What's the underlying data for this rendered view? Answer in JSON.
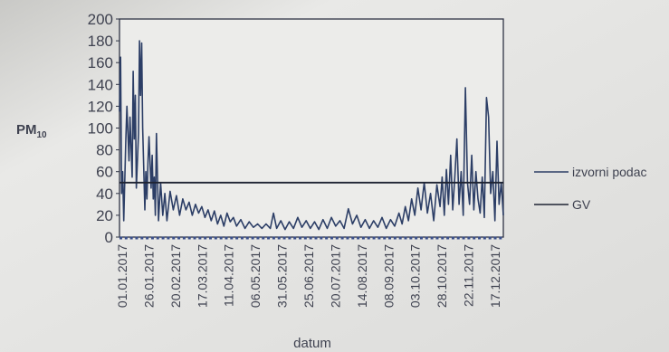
{
  "chart_data": {
    "type": "line",
    "title": "",
    "ylabel": "PM",
    "ylabel_sub": "10",
    "xlabel": "datum",
    "ylim": [
      0,
      200
    ],
    "yticks": [
      0,
      20,
      40,
      60,
      80,
      100,
      120,
      140,
      160,
      180,
      200
    ],
    "xlim": [
      "2017-01-01",
      "2017-12-31"
    ],
    "xtick_labels": [
      "01.01.2017",
      "26.01.2017",
      "20.02.2017",
      "17.03.2017",
      "11.04.2017",
      "06.05.2017",
      "31.05.2017",
      "25.06.2017",
      "20.07.2017",
      "14.08.2017",
      "08.09.2017",
      "03.10.2017",
      "28.10.2017",
      "22.11.2017",
      "17.12.2017"
    ],
    "grid": false,
    "legend_position": "right",
    "series": [
      {
        "name": "izvorni podac",
        "color": "#2c3e66",
        "points": [
          [
            "2017-01-01",
            115
          ],
          [
            "2017-01-02",
            165
          ],
          [
            "2017-01-03",
            40
          ],
          [
            "2017-01-04",
            60
          ],
          [
            "2017-01-05",
            15
          ],
          [
            "2017-01-07",
            90
          ],
          [
            "2017-01-08",
            120
          ],
          [
            "2017-01-10",
            70
          ],
          [
            "2017-01-11",
            110
          ],
          [
            "2017-01-13",
            55
          ],
          [
            "2017-01-14",
            152
          ],
          [
            "2017-01-15",
            90
          ],
          [
            "2017-01-16",
            130
          ],
          [
            "2017-01-17",
            45
          ],
          [
            "2017-01-19",
            95
          ],
          [
            "2017-01-20",
            180
          ],
          [
            "2017-01-21",
            130
          ],
          [
            "2017-01-22",
            178
          ],
          [
            "2017-01-23",
            100
          ],
          [
            "2017-01-25",
            25
          ],
          [
            "2017-01-26",
            60
          ],
          [
            "2017-01-27",
            35
          ],
          [
            "2017-01-28",
            70
          ],
          [
            "2017-01-29",
            92
          ],
          [
            "2017-01-31",
            45
          ],
          [
            "2017-02-01",
            75
          ],
          [
            "2017-02-02",
            35
          ],
          [
            "2017-02-03",
            55
          ],
          [
            "2017-02-04",
            20
          ],
          [
            "2017-02-05",
            95
          ],
          [
            "2017-02-07",
            15
          ],
          [
            "2017-02-09",
            50
          ],
          [
            "2017-02-11",
            20
          ],
          [
            "2017-02-13",
            40
          ],
          [
            "2017-02-15",
            15
          ],
          [
            "2017-02-18",
            42
          ],
          [
            "2017-02-21",
            25
          ],
          [
            "2017-02-24",
            38
          ],
          [
            "2017-02-27",
            20
          ],
          [
            "2017-03-02",
            35
          ],
          [
            "2017-03-05",
            25
          ],
          [
            "2017-03-08",
            32
          ],
          [
            "2017-03-11",
            20
          ],
          [
            "2017-03-14",
            30
          ],
          [
            "2017-03-17",
            22
          ],
          [
            "2017-03-20",
            28
          ],
          [
            "2017-03-23",
            18
          ],
          [
            "2017-03-26",
            25
          ],
          [
            "2017-03-29",
            15
          ],
          [
            "2017-04-01",
            24
          ],
          [
            "2017-04-04",
            12
          ],
          [
            "2017-04-07",
            20
          ],
          [
            "2017-04-10",
            10
          ],
          [
            "2017-04-13",
            22
          ],
          [
            "2017-04-16",
            14
          ],
          [
            "2017-04-19",
            18
          ],
          [
            "2017-04-22",
            10
          ],
          [
            "2017-04-26",
            16
          ],
          [
            "2017-04-30",
            8
          ],
          [
            "2017-05-04",
            14
          ],
          [
            "2017-05-08",
            9
          ],
          [
            "2017-05-12",
            12
          ],
          [
            "2017-05-16",
            8
          ],
          [
            "2017-05-20",
            12
          ],
          [
            "2017-05-24",
            8
          ],
          [
            "2017-05-27",
            22
          ],
          [
            "2017-05-30",
            8
          ],
          [
            "2017-06-03",
            15
          ],
          [
            "2017-06-07",
            7
          ],
          [
            "2017-06-11",
            14
          ],
          [
            "2017-06-15",
            8
          ],
          [
            "2017-06-19",
            18
          ],
          [
            "2017-06-23",
            9
          ],
          [
            "2017-06-27",
            15
          ],
          [
            "2017-07-01",
            8
          ],
          [
            "2017-07-05",
            14
          ],
          [
            "2017-07-09",
            7
          ],
          [
            "2017-07-13",
            16
          ],
          [
            "2017-07-17",
            8
          ],
          [
            "2017-07-21",
            18
          ],
          [
            "2017-07-25",
            10
          ],
          [
            "2017-07-29",
            15
          ],
          [
            "2017-08-02",
            8
          ],
          [
            "2017-08-06",
            26
          ],
          [
            "2017-08-10",
            12
          ],
          [
            "2017-08-14",
            20
          ],
          [
            "2017-08-18",
            9
          ],
          [
            "2017-08-22",
            16
          ],
          [
            "2017-08-26",
            8
          ],
          [
            "2017-08-30",
            15
          ],
          [
            "2017-09-03",
            9
          ],
          [
            "2017-09-07",
            18
          ],
          [
            "2017-09-11",
            8
          ],
          [
            "2017-09-15",
            16
          ],
          [
            "2017-09-19",
            10
          ],
          [
            "2017-09-23",
            22
          ],
          [
            "2017-09-26",
            12
          ],
          [
            "2017-09-29",
            28
          ],
          [
            "2017-10-02",
            15
          ],
          [
            "2017-10-05",
            35
          ],
          [
            "2017-10-08",
            20
          ],
          [
            "2017-10-11",
            45
          ],
          [
            "2017-10-14",
            25
          ],
          [
            "2017-10-17",
            50
          ],
          [
            "2017-10-20",
            22
          ],
          [
            "2017-10-23",
            40
          ],
          [
            "2017-10-26",
            15
          ],
          [
            "2017-10-29",
            48
          ],
          [
            "2017-11-01",
            28
          ],
          [
            "2017-11-03",
            55
          ],
          [
            "2017-11-05",
            20
          ],
          [
            "2017-11-07",
            62
          ],
          [
            "2017-11-09",
            30
          ],
          [
            "2017-11-11",
            75
          ],
          [
            "2017-11-13",
            25
          ],
          [
            "2017-11-15",
            55
          ],
          [
            "2017-11-17",
            90
          ],
          [
            "2017-11-19",
            30
          ],
          [
            "2017-11-21",
            60
          ],
          [
            "2017-11-23",
            20
          ],
          [
            "2017-11-25",
            137
          ],
          [
            "2017-11-27",
            50
          ],
          [
            "2017-11-29",
            30
          ],
          [
            "2017-12-01",
            75
          ],
          [
            "2017-12-03",
            25
          ],
          [
            "2017-12-05",
            60
          ],
          [
            "2017-12-07",
            35
          ],
          [
            "2017-12-09",
            22
          ],
          [
            "2017-12-11",
            55
          ],
          [
            "2017-12-13",
            18
          ],
          [
            "2017-12-15",
            128
          ],
          [
            "2017-12-17",
            110
          ],
          [
            "2017-12-19",
            40
          ],
          [
            "2017-12-21",
            60
          ],
          [
            "2017-12-23",
            15
          ],
          [
            "2017-12-25",
            88
          ],
          [
            "2017-12-27",
            30
          ],
          [
            "2017-12-29",
            50
          ],
          [
            "2017-12-31",
            20
          ]
        ]
      },
      {
        "name": "GV",
        "color": "#1f2433",
        "points": [
          [
            "2017-01-01",
            50
          ],
          [
            "2017-12-31",
            50
          ]
        ]
      }
    ]
  }
}
